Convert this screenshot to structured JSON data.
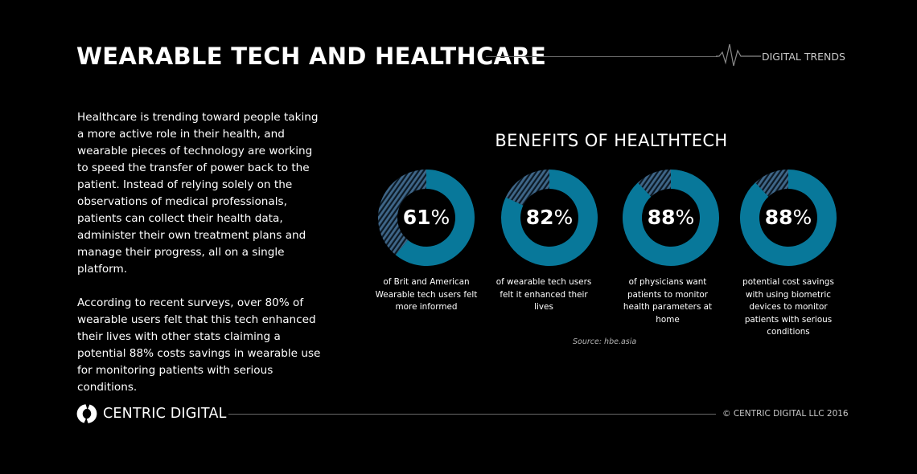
{
  "header": {
    "title": "WEARABLE TECH AND HEALTHCARE",
    "tag": "DIGITAL TRENDS"
  },
  "intro": {
    "paragraph1": "Healthcare is trending toward people taking a more active role in their health, and wearable pieces of technology are working to speed the transfer of power back to the patient. Instead of relying solely on the observations of medical professionals, patients can collect their health data, administer their own treatment plans and manage their progress, all on a single platform.",
    "paragraph2": "According to recent surveys, over 80% of wearable users felt that this tech enhanced their lives with other stats claiming a potential 88% costs savings in wearable use for monitoring patients with serious conditions."
  },
  "chart": {
    "title": "BENEFITS OF HEALTHTECH",
    "source": "Source: hbe.asia",
    "colors": {
      "filled": "#08789a",
      "remainder_hatch": "#3f6688",
      "hatch_gap": "#0c1a26"
    },
    "items": [
      {
        "number": "61",
        "unit": "%",
        "caption": "of Brit and American Wearable tech users felt more informed"
      },
      {
        "number": "82",
        "unit": "%",
        "caption": "of wearable tech users felt it enhanced their lives"
      },
      {
        "number": "88",
        "unit": "%",
        "caption": "of physicians want patients to monitor health parameters at home"
      },
      {
        "number": "88",
        "unit": "%",
        "caption": "potential cost savings with using biometric devices to monitor patients with serious conditions"
      }
    ]
  },
  "chart_data": {
    "type": "pie",
    "subtype": "donut",
    "title": "BENEFITS OF HEALTHTECH",
    "categories": [
      "of Brit and American Wearable tech users felt more informed",
      "of wearable tech users felt it enhanced their lives",
      "of physicians want patients to monitor health parameters at home",
      "potential cost savings with using biometric devices to monitor patients with serious conditions"
    ],
    "values": [
      61,
      82,
      88,
      88
    ],
    "remainder": [
      39,
      18,
      12,
      12
    ],
    "unit": "%",
    "source": "Source: hbe.asia",
    "legend": "none"
  },
  "footer": {
    "brand": "CENTRIC DIGITAL",
    "copyright": "© CENTRIC DIGITAL LLC 2016"
  }
}
